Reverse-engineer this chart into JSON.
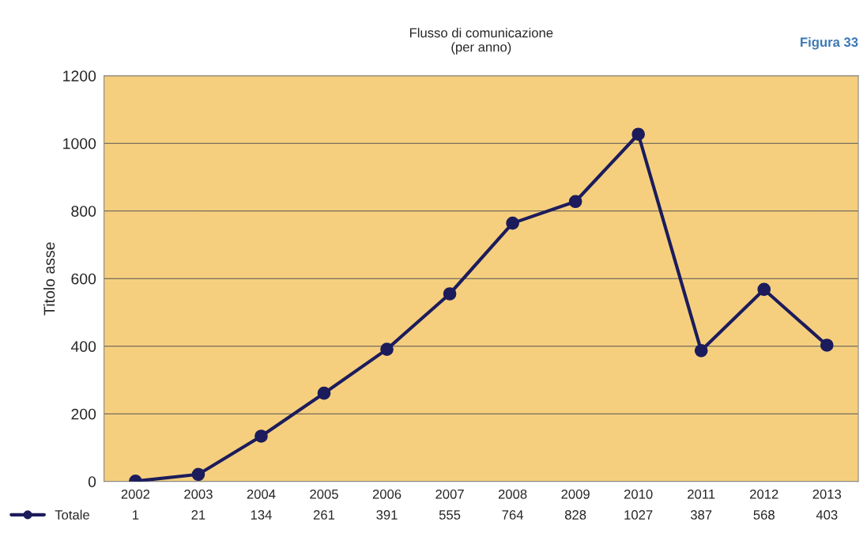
{
  "chart_data": {
    "type": "line",
    "title": "Flusso di comunicazione\n(per anno)",
    "ylabel": "Titolo asse",
    "annotations": [
      "Figura 33"
    ],
    "categories": [
      "2002",
      "2003",
      "2004",
      "2005",
      "2006",
      "2007",
      "2008",
      "2009",
      "2010",
      "2011",
      "2012",
      "2013"
    ],
    "series": [
      {
        "name": "Totale",
        "color": "#1c1c5c",
        "values": [
          1,
          21,
          134,
          261,
          391,
          555,
          764,
          828,
          1027,
          387,
          568,
          403
        ]
      }
    ],
    "ylim": [
      0,
      1200
    ],
    "yticks": [
      0,
      200,
      400,
      600,
      800,
      1000,
      1200
    ],
    "grid": "y",
    "marker": "circle",
    "line_style": "solid",
    "legend": "bottom left",
    "data_labels": true
  }
}
